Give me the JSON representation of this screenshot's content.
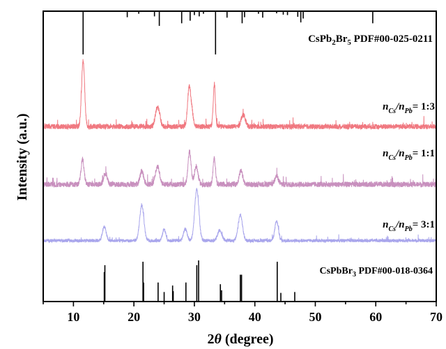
{
  "chart_data": {
    "type": "line",
    "xlabel_prefix": "2",
    "xlabel_theta": "θ",
    "xlabel_unit": " (degree)",
    "ylabel": "Intensity (a.u.)",
    "xlim": [
      5,
      70
    ],
    "xticks": [
      10,
      20,
      30,
      40,
      50,
      60,
      70
    ],
    "ylim": [
      0,
      100
    ],
    "references": [
      {
        "name": "CsPb2Br5 PDF#00-025-0211",
        "label_main": "CsPb",
        "label_sub1": "2",
        "label_mid": "Br",
        "label_sub2": "5",
        "label_tail": " PDF#00-025-0211",
        "color": "#000000",
        "peaks": [
          [
            11.6,
            100
          ],
          [
            18.9,
            14
          ],
          [
            20.8,
            6
          ],
          [
            23.4,
            12
          ],
          [
            24.2,
            34
          ],
          [
            27.9,
            28
          ],
          [
            29.3,
            22
          ],
          [
            30.0,
            9
          ],
          [
            30.8,
            12
          ],
          [
            31.5,
            6
          ],
          [
            33.5,
            100
          ],
          [
            35.4,
            15
          ],
          [
            37.9,
            28
          ],
          [
            38.3,
            14
          ],
          [
            40.6,
            6
          ],
          [
            41.3,
            15
          ],
          [
            43.6,
            5
          ],
          [
            44.7,
            8
          ],
          [
            45.4,
            9
          ],
          [
            47.1,
            13
          ],
          [
            47.6,
            26
          ],
          [
            48.0,
            17
          ],
          [
            59.5,
            28
          ]
        ]
      },
      {
        "name": "CsPbBr3 PDF#00-018-0364",
        "label_main": "CsPbBr",
        "label_sub1": "3",
        "label_tail": " PDF#00-018-0364",
        "color": "#000000",
        "peaks": [
          [
            15.2,
            84
          ],
          [
            15.1,
            68
          ],
          [
            21.5,
            92
          ],
          [
            21.6,
            44
          ],
          [
            24.0,
            44
          ],
          [
            25.0,
            22
          ],
          [
            26.4,
            37
          ],
          [
            26.5,
            24
          ],
          [
            28.6,
            44
          ],
          [
            30.4,
            84
          ],
          [
            30.7,
            95
          ],
          [
            34.3,
            40
          ],
          [
            34.5,
            26
          ],
          [
            37.6,
            62
          ],
          [
            37.8,
            62
          ],
          [
            43.7,
            92
          ],
          [
            44.3,
            20
          ],
          [
            46.6,
            22
          ]
        ]
      }
    ],
    "series": [
      {
        "label_n1": "n",
        "label_s1": "Cs",
        "label_slash": "/",
        "label_n2": "n",
        "label_s2": "Pb",
        "label_ratio": "= 1:3",
        "color": "#f07880",
        "noise": 7,
        "peaks": [
          [
            11.6,
            90,
            0.25
          ],
          [
            23.8,
            22,
            0.3
          ],
          [
            29.1,
            45,
            0.25
          ],
          [
            29.5,
            22,
            0.3
          ],
          [
            33.3,
            58,
            0.18
          ],
          [
            37.9,
            12,
            0.25
          ],
          [
            38.3,
            10,
            0.25
          ],
          [
            24.2,
            12,
            0.25
          ]
        ]
      },
      {
        "label_n1": "n",
        "label_s1": "Cs",
        "label_slash": "/",
        "label_n2": "n",
        "label_s2": "Pb",
        "label_ratio": "= 1:1",
        "color": "#c890be",
        "noise": 9,
        "peaks": [
          [
            11.5,
            42,
            0.25
          ],
          [
            15.3,
            18,
            0.3
          ],
          [
            21.3,
            22,
            0.3
          ],
          [
            23.9,
            30,
            0.35
          ],
          [
            29.2,
            55,
            0.25
          ],
          [
            30.3,
            30,
            0.3
          ],
          [
            33.3,
            44,
            0.2
          ],
          [
            37.7,
            22,
            0.3
          ],
          [
            43.6,
            14,
            0.3
          ]
        ]
      },
      {
        "label_n1": "n",
        "label_s1": "Cs",
        "label_slash": "/",
        "label_n2": "n",
        "label_s2": "Pb",
        "label_ratio": "= 3:1",
        "color": "#a9a6ec",
        "noise": 5,
        "peaks": [
          [
            15.1,
            22,
            0.3
          ],
          [
            21.3,
            55,
            0.35
          ],
          [
            25.0,
            18,
            0.25
          ],
          [
            28.5,
            18,
            0.3
          ],
          [
            30.4,
            80,
            0.35
          ],
          [
            34.2,
            16,
            0.35
          ],
          [
            37.6,
            40,
            0.35
          ],
          [
            43.6,
            30,
            0.3
          ]
        ]
      }
    ]
  }
}
